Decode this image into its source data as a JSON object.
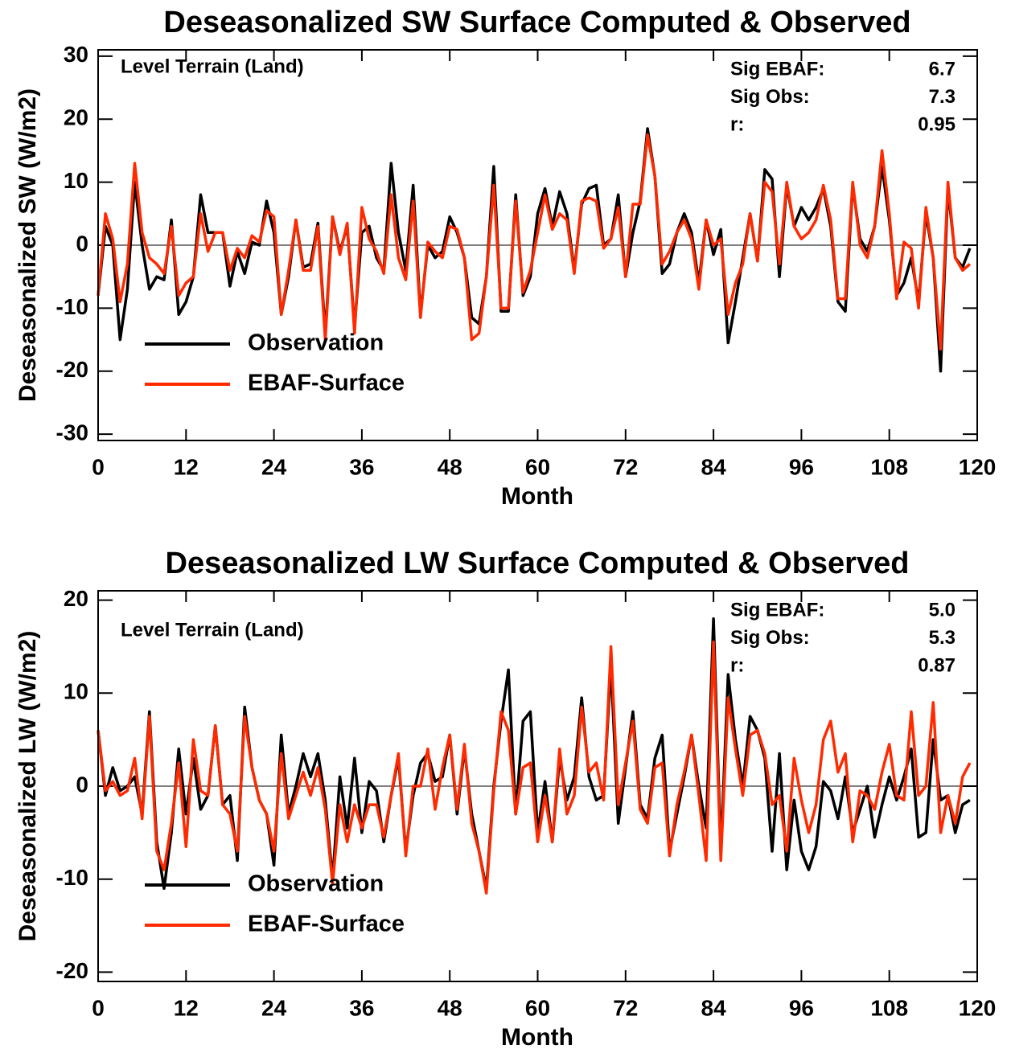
{
  "chart_data": [
    {
      "type": "line",
      "title": "Deseasonalized SW Surface Computed & Observed",
      "x_label": "Month",
      "y_label": "Deseasonalized SW (W/m2)",
      "annotation": "Level Terrain (Land)",
      "stats": [
        {
          "label": "Sig EBAF:",
          "value": "6.7"
        },
        {
          "label": "Sig Obs:",
          "value": "7.3"
        },
        {
          "label": "r:",
          "value": "0.95"
        }
      ],
      "legend": "lower left",
      "reference_line": 0,
      "xlim": [
        0,
        120
      ],
      "xticks": [
        0,
        12,
        24,
        36,
        48,
        60,
        72,
        84,
        96,
        108,
        120
      ],
      "ylim": [
        -31,
        31
      ],
      "yticks": [
        -30,
        -20,
        -10,
        0,
        10,
        20,
        30
      ],
      "x": [
        0,
        1,
        2,
        3,
        4,
        5,
        6,
        7,
        8,
        9,
        10,
        11,
        12,
        13,
        14,
        15,
        16,
        17,
        18,
        19,
        20,
        21,
        22,
        23,
        24,
        25,
        26,
        27,
        28,
        29,
        30,
        31,
        32,
        33,
        34,
        35,
        36,
        37,
        38,
        39,
        40,
        41,
        42,
        43,
        44,
        45,
        46,
        47,
        48,
        49,
        50,
        51,
        52,
        53,
        54,
        55,
        56,
        57,
        58,
        59,
        60,
        61,
        62,
        63,
        64,
        65,
        66,
        67,
        68,
        69,
        70,
        71,
        72,
        73,
        74,
        75,
        76,
        77,
        78,
        79,
        80,
        81,
        82,
        83,
        84,
        85,
        86,
        87,
        88,
        89,
        90,
        91,
        92,
        93,
        94,
        95,
        96,
        97,
        98,
        99,
        100,
        101,
        102,
        103,
        104,
        105,
        106,
        107,
        108,
        109,
        110,
        111,
        112,
        113,
        114,
        115,
        116,
        117,
        118,
        119
      ],
      "series": [
        {
          "name": "Observation",
          "color": "#000000",
          "values": [
            -8,
            3,
            0,
            -15,
            -7,
            10,
            0,
            -7,
            -5,
            -5.5,
            4,
            -11,
            -9,
            -5,
            8,
            2,
            2,
            2,
            -6.5,
            -1,
            -4.5,
            0.5,
            0,
            7,
            2,
            -11,
            -5,
            4,
            -3.5,
            -3,
            3.5,
            -14,
            4.5,
            -1,
            3,
            -13,
            2,
            3,
            -2,
            -4,
            13,
            2,
            -4,
            9.5,
            -11,
            0,
            -2,
            -1,
            4.5,
            2,
            -2,
            -11.5,
            -12.5,
            -5,
            12.5,
            -10.5,
            -10.5,
            8,
            -8,
            -5,
            5,
            9,
            3,
            8.5,
            5,
            -4,
            6.5,
            9,
            9.5,
            0,
            1,
            8,
            -5,
            2,
            7,
            18.5,
            11,
            -4.5,
            -3,
            2,
            5,
            2,
            -6,
            4,
            -1.5,
            2.5,
            -15.5,
            -9,
            -2,
            5,
            -2.5,
            12,
            10.5,
            -5,
            9.5,
            3,
            6,
            4,
            6,
            9,
            3,
            -9,
            -10.5,
            9.5,
            1,
            -1,
            3,
            12.5,
            4,
            -8,
            -6,
            -2,
            -9,
            5,
            -2,
            -20,
            9,
            -2,
            -3.5,
            -0.5
          ]
        },
        {
          "name": "EBAF-Surface",
          "color": "#ff2a00",
          "values": [
            -8,
            5,
            1,
            -9,
            -3,
            13,
            2,
            -2,
            -3,
            -4.5,
            3,
            -8,
            -6,
            -5,
            5,
            -1,
            2,
            2,
            -4,
            -0.5,
            -2,
            1.5,
            0.5,
            5.5,
            4.5,
            -11,
            -4,
            4,
            -4,
            -4,
            3,
            -15,
            4.5,
            -1.5,
            3.5,
            -14,
            6,
            1,
            -1,
            -4.5,
            8,
            -2,
            -5.5,
            7,
            -11.5,
            0.5,
            -1,
            -2,
            3,
            2.5,
            -2,
            -15,
            -14,
            -5,
            9.5,
            -10,
            -10,
            7,
            -7.5,
            -4,
            2,
            8,
            2.5,
            5,
            4,
            -4.5,
            7,
            7.5,
            7,
            -0.5,
            1,
            6,
            -5,
            6.5,
            6.5,
            17.5,
            11,
            -3,
            -1,
            2,
            4,
            1,
            -7,
            4,
            0,
            1,
            -11,
            -6,
            -3,
            5,
            -2.5,
            10,
            8.5,
            -3,
            10,
            3,
            1,
            2,
            4,
            9.5,
            4,
            -8.5,
            -8.5,
            10,
            0,
            -2,
            3,
            15,
            5,
            -8.5,
            0.5,
            -0.5,
            -10,
            6,
            -2,
            -16.5,
            10,
            -2,
            -4,
            -3
          ]
        }
      ]
    },
    {
      "type": "line",
      "title": "Deseasonalized LW Surface Computed & Observed",
      "x_label": "Month",
      "y_label": "Deseasonalized LW (W/m2)",
      "annotation": "Level Terrain (Land)",
      "stats": [
        {
          "label": "Sig EBAF:",
          "value": "5.0"
        },
        {
          "label": "Sig Obs:",
          "value": "5.3"
        },
        {
          "label": "r:",
          "value": "0.87"
        }
      ],
      "legend": "lower left",
      "reference_line": 0,
      "xlim": [
        0,
        120
      ],
      "xticks": [
        0,
        12,
        24,
        36,
        48,
        60,
        72,
        84,
        96,
        108,
        120
      ],
      "ylim": [
        -21,
        21
      ],
      "yticks": [
        -20,
        -10,
        0,
        10,
        20
      ],
      "x": [
        0,
        1,
        2,
        3,
        4,
        5,
        6,
        7,
        8,
        9,
        10,
        11,
        12,
        13,
        14,
        15,
        16,
        17,
        18,
        19,
        20,
        21,
        22,
        23,
        24,
        25,
        26,
        27,
        28,
        29,
        30,
        31,
        32,
        33,
        34,
        35,
        36,
        37,
        38,
        39,
        40,
        41,
        42,
        43,
        44,
        45,
        46,
        47,
        48,
        49,
        50,
        51,
        52,
        53,
        54,
        55,
        56,
        57,
        58,
        59,
        60,
        61,
        62,
        63,
        64,
        65,
        66,
        67,
        68,
        69,
        70,
        71,
        72,
        73,
        74,
        75,
        76,
        77,
        78,
        79,
        80,
        81,
        82,
        83,
        84,
        85,
        86,
        87,
        88,
        89,
        90,
        91,
        92,
        93,
        94,
        95,
        96,
        97,
        98,
        99,
        100,
        101,
        102,
        103,
        104,
        105,
        106,
        107,
        108,
        109,
        110,
        111,
        112,
        113,
        114,
        115,
        116,
        117,
        118,
        119
      ],
      "series": [
        {
          "name": "Observation",
          "color": "#000000",
          "values": [
            6,
            -1,
            2,
            -0.5,
            0,
            1,
            -3,
            8,
            -6,
            -11,
            -5,
            4,
            -3,
            3,
            -2.5,
            -1,
            6.5,
            -2,
            -1,
            -8,
            8.5,
            2,
            -1.5,
            -3,
            -8.5,
            5.5,
            -3,
            0,
            3.5,
            1,
            3.5,
            -1.5,
            -10,
            1,
            -4.5,
            3,
            -5,
            0.5,
            -0.5,
            -6,
            -1,
            3,
            -7,
            -1,
            2.5,
            3.5,
            0.5,
            1,
            5.5,
            -3,
            4,
            -3,
            -7,
            -11,
            0,
            7,
            12.5,
            -3,
            7,
            8,
            -5,
            0.5,
            -6,
            3,
            -1.5,
            1,
            9.5,
            1,
            -1.5,
            -1,
            13,
            -4,
            2,
            8,
            -2,
            -3.5,
            3,
            5.5,
            -7,
            -3,
            1,
            5.5,
            0,
            -4.5,
            18,
            -7,
            12,
            5,
            0,
            7.5,
            6,
            3,
            -7,
            3.5,
            -9,
            -1.5,
            -7,
            -9,
            -6.5,
            0.5,
            -0.5,
            -3.5,
            1,
            -5,
            -2.5,
            0,
            -5.5,
            -2,
            1,
            -1.5,
            1,
            4,
            -5.5,
            -5,
            5,
            -1.5,
            -1,
            -5,
            -2,
            -1.5
          ]
        },
        {
          "name": "EBAF-Surface",
          "color": "#ff2a00",
          "values": [
            6,
            -0.5,
            0.5,
            -1,
            -0.5,
            3,
            -3.5,
            7.5,
            -7,
            -9,
            -4,
            2.5,
            -6.5,
            5,
            -0.5,
            -1,
            6.5,
            -2,
            -3,
            -7,
            7.5,
            2,
            -1.5,
            -3,
            -7,
            3.5,
            -3.5,
            -1,
            1.5,
            -1,
            2,
            -2.5,
            -10.5,
            -2,
            -6,
            -2,
            -4.5,
            -2,
            -2,
            -5.5,
            -1,
            3.5,
            -7.5,
            0,
            0,
            4,
            -2.5,
            2,
            5.5,
            -2.5,
            4.5,
            -4,
            -7,
            -11.5,
            -0.5,
            8,
            6,
            -3,
            2,
            2.5,
            -6,
            -1,
            -6,
            4,
            -3,
            -1,
            8.5,
            1.5,
            2.5,
            -1.5,
            15,
            -2,
            2.5,
            7,
            -2.5,
            -4,
            2,
            2.5,
            -7.5,
            -2,
            1.5,
            5.5,
            -1,
            -8,
            15.5,
            -8,
            9.5,
            4,
            -1,
            5.5,
            6,
            3.5,
            -2,
            -1,
            -7,
            3,
            -1.5,
            -5,
            -2,
            5,
            7,
            1.5,
            3.5,
            -6,
            -0.5,
            -1,
            -2.5,
            1.5,
            4.5,
            -1,
            -1.5,
            8,
            -1,
            0,
            9,
            -5,
            -1,
            -4,
            1,
            2.5
          ]
        }
      ]
    }
  ]
}
